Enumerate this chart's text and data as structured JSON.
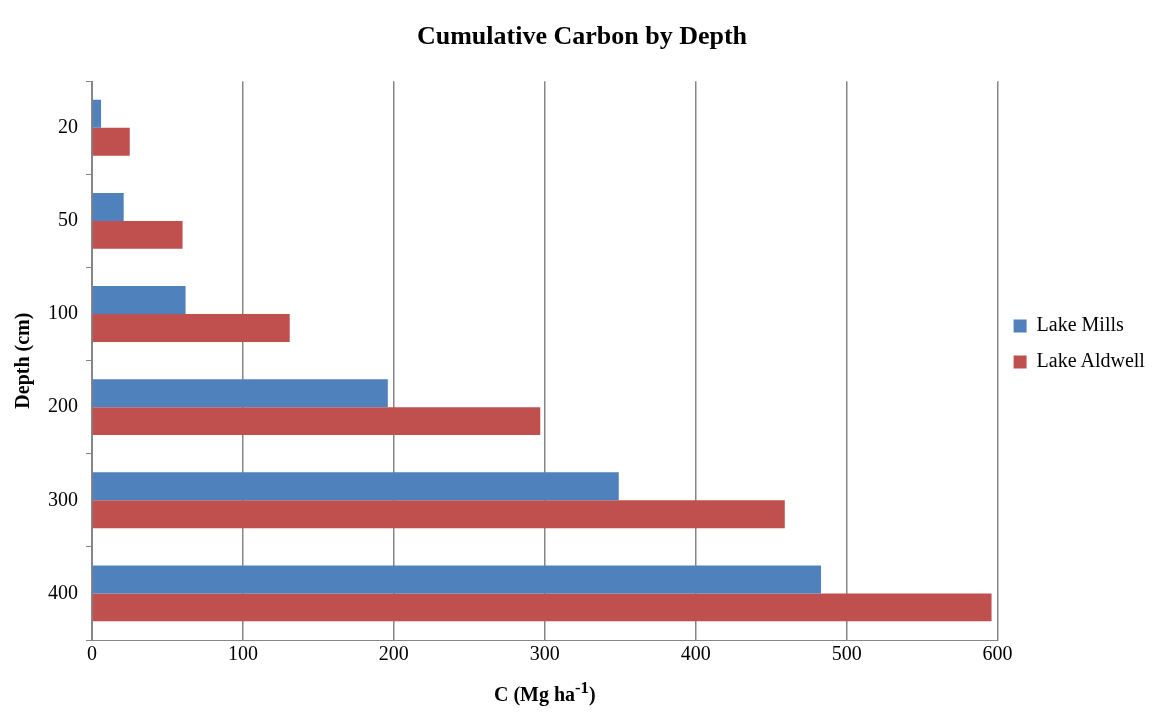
{
  "chart_data": {
    "type": "bar",
    "orientation": "horizontal",
    "title": "Cumulative Carbon by Depth",
    "xlabel": "C (Mg ha$^{-1}$)",
    "ylabel": "Depth (cm)",
    "categories": [
      "20",
      "50",
      "100",
      "200",
      "300",
      "400"
    ],
    "series": [
      {
        "name": "Lake Mills",
        "color": "#4f81bd",
        "values": [
          6,
          21,
          62,
          196,
          349,
          483
        ]
      },
      {
        "name": "Lake Aldwell",
        "color": "#c0504d",
        "values": [
          25,
          60,
          131,
          297,
          459,
          596
        ]
      }
    ],
    "xlim": [
      0,
      600
    ],
    "xticks": [
      0,
      100,
      200,
      300,
      400,
      500,
      600
    ],
    "grid": "x",
    "legend": "right"
  }
}
